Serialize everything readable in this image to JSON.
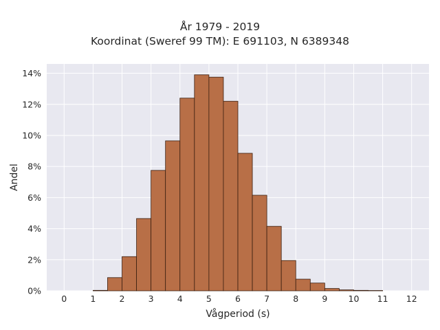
{
  "chart_data": {
    "type": "bar",
    "title_lines": [
      "År 1979 - 2019",
      "Koordinat (Sweref 99 TM): E 691103, N 6389348"
    ],
    "xlabel": "Vågperiod (s)",
    "ylabel": "Andel",
    "xlim": [
      -0.6,
      12.6
    ],
    "ylim": [
      0,
      14.6
    ],
    "x_ticks": [
      0,
      1,
      2,
      3,
      4,
      5,
      6,
      7,
      8,
      9,
      10,
      11,
      12
    ],
    "x_tick_labels": [
      "0",
      "1",
      "2",
      "3",
      "4",
      "5",
      "6",
      "7",
      "8",
      "9",
      "10",
      "11",
      "12"
    ],
    "y_ticks": [
      0,
      2,
      4,
      6,
      8,
      10,
      12,
      14
    ],
    "y_tick_labels": [
      "0%",
      "2%",
      "4%",
      "6%",
      "8%",
      "10%",
      "12%",
      "14%"
    ],
    "bin_width": 0.5,
    "bins": [
      {
        "x0": 1.0,
        "value": 0.03
      },
      {
        "x0": 1.5,
        "value": 0.85
      },
      {
        "x0": 2.0,
        "value": 2.2
      },
      {
        "x0": 2.5,
        "value": 4.65
      },
      {
        "x0": 3.0,
        "value": 7.75
      },
      {
        "x0": 3.5,
        "value": 9.65
      },
      {
        "x0": 4.0,
        "value": 12.4
      },
      {
        "x0": 4.5,
        "value": 13.9
      },
      {
        "x0": 5.0,
        "value": 13.75
      },
      {
        "x0": 5.5,
        "value": 12.2
      },
      {
        "x0": 6.0,
        "value": 8.85
      },
      {
        "x0": 6.5,
        "value": 6.15
      },
      {
        "x0": 7.0,
        "value": 4.15
      },
      {
        "x0": 7.5,
        "value": 1.95
      },
      {
        "x0": 8.0,
        "value": 0.75
      },
      {
        "x0": 8.5,
        "value": 0.5
      },
      {
        "x0": 9.0,
        "value": 0.15
      },
      {
        "x0": 9.5,
        "value": 0.06
      },
      {
        "x0": 10.0,
        "value": 0.03
      },
      {
        "x0": 10.5,
        "value": 0.02
      }
    ],
    "bar_color": "#b86f47",
    "bar_edge_color": "#3a1f10",
    "plot_background": "#e8e8f0",
    "grid": true
  }
}
